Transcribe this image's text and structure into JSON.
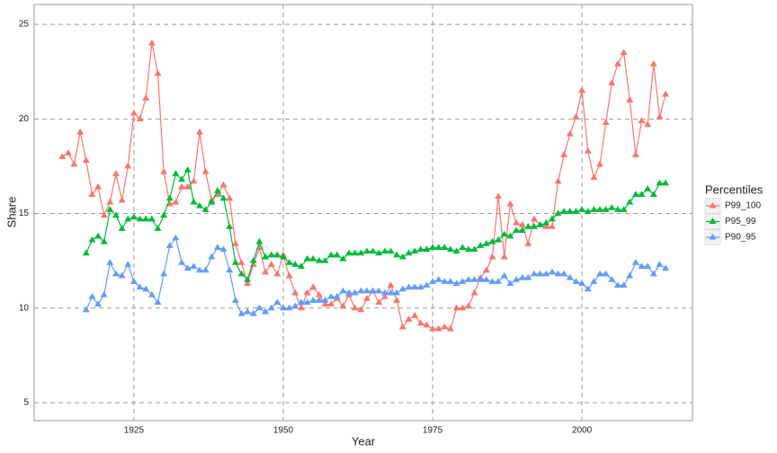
{
  "chart_data": {
    "type": "line",
    "x_label": "Year",
    "y_label": "Share",
    "legend_title": "Percentiles",
    "legend_position": "right",
    "grid": true,
    "markers": "triangle",
    "x": [
      1913,
      1914,
      1915,
      1916,
      1917,
      1918,
      1919,
      1920,
      1921,
      1922,
      1923,
      1924,
      1925,
      1926,
      1927,
      1928,
      1929,
      1930,
      1931,
      1932,
      1933,
      1934,
      1935,
      1936,
      1937,
      1938,
      1939,
      1940,
      1941,
      1942,
      1943,
      1944,
      1945,
      1946,
      1947,
      1948,
      1949,
      1950,
      1951,
      1952,
      1953,
      1954,
      1955,
      1956,
      1957,
      1958,
      1959,
      1960,
      1961,
      1962,
      1963,
      1964,
      1965,
      1966,
      1967,
      1968,
      1969,
      1970,
      1971,
      1972,
      1973,
      1974,
      1975,
      1976,
      1977,
      1978,
      1979,
      1980,
      1981,
      1982,
      1983,
      1984,
      1985,
      1986,
      1987,
      1988,
      1989,
      1990,
      1991,
      1992,
      1993,
      1994,
      1995,
      1996,
      1997,
      1998,
      1999,
      2000,
      2001,
      2002,
      2003,
      2004,
      2005,
      2006,
      2007,
      2008,
      2009,
      2010,
      2011,
      2012,
      2013,
      2014
    ],
    "series": [
      {
        "name": "P99_100",
        "color": "#f8766d",
        "values": [
          18.0,
          18.2,
          17.6,
          19.3,
          17.8,
          16.0,
          16.4,
          14.9,
          15.6,
          17.1,
          15.7,
          17.5,
          20.3,
          20.0,
          21.1,
          24.0,
          22.4,
          17.2,
          15.5,
          15.6,
          16.4,
          16.4,
          16.7,
          19.3,
          17.2,
          15.7,
          16.0,
          16.5,
          15.8,
          13.4,
          12.4,
          11.3,
          12.3,
          13.2,
          11.9,
          12.3,
          11.8,
          12.8,
          11.7,
          10.8,
          10.0,
          10.8,
          11.1,
          10.7,
          10.2,
          10.2,
          10.5,
          10.1,
          10.7,
          10.0,
          9.9,
          10.5,
          10.9,
          10.3,
          10.6,
          11.2,
          10.4,
          9.0,
          9.4,
          9.6,
          9.2,
          9.1,
          8.9,
          8.9,
          9.0,
          8.9,
          10.0,
          10.0,
          10.1,
          10.8,
          11.6,
          12.0,
          12.7,
          15.9,
          12.7,
          15.5,
          14.5,
          14.4,
          13.4,
          14.7,
          14.4,
          14.3,
          14.3,
          16.7,
          18.1,
          19.2,
          20.1,
          21.5,
          18.3,
          16.9,
          17.6,
          19.8,
          21.9,
          22.9,
          23.5,
          21.0,
          18.1,
          19.9,
          19.7,
          22.9,
          20.1,
          21.3
        ]
      },
      {
        "name": "P95_99",
        "color": "#00ba38",
        "values": [
          null,
          null,
          null,
          null,
          12.9,
          13.6,
          13.8,
          13.5,
          15.2,
          14.9,
          14.2,
          14.7,
          14.8,
          14.7,
          14.7,
          14.7,
          14.2,
          14.9,
          15.8,
          17.1,
          16.8,
          17.3,
          15.6,
          15.4,
          15.2,
          15.6,
          16.2,
          15.8,
          14.3,
          12.4,
          11.8,
          11.5,
          12.5,
          13.5,
          12.7,
          12.8,
          12.8,
          12.7,
          12.4,
          12.3,
          12.2,
          12.6,
          12.6,
          12.5,
          12.5,
          12.8,
          12.8,
          12.6,
          12.9,
          12.9,
          12.9,
          13.0,
          13.0,
          12.9,
          13.0,
          13.0,
          12.8,
          12.7,
          12.9,
          13.0,
          13.1,
          13.1,
          13.2,
          13.2,
          13.2,
          13.1,
          13.0,
          13.2,
          13.1,
          13.1,
          13.3,
          13.4,
          13.5,
          13.6,
          13.9,
          13.8,
          14.1,
          14.1,
          14.3,
          14.3,
          14.4,
          14.5,
          14.7,
          15.0,
          15.1,
          15.1,
          15.1,
          15.2,
          15.1,
          15.2,
          15.2,
          15.2,
          15.3,
          15.2,
          15.2,
          15.6,
          16.0,
          16.0,
          16.3,
          16.0,
          16.6,
          16.6
        ]
      },
      {
        "name": "P90_95",
        "color": "#619cff",
        "values": [
          null,
          null,
          null,
          null,
          9.9,
          10.6,
          10.2,
          10.7,
          12.4,
          11.8,
          11.7,
          12.3,
          11.4,
          11.1,
          11.0,
          10.7,
          10.3,
          11.8,
          13.3,
          13.7,
          12.4,
          12.1,
          12.2,
          12.0,
          12.0,
          12.7,
          13.2,
          13.1,
          12.0,
          10.4,
          9.7,
          9.8,
          9.7,
          10.0,
          9.8,
          10.0,
          10.3,
          10.0,
          10.0,
          10.1,
          10.3,
          10.3,
          10.4,
          10.4,
          10.4,
          10.6,
          10.6,
          10.9,
          10.8,
          10.8,
          10.9,
          10.9,
          10.9,
          10.9,
          10.8,
          10.8,
          10.8,
          11.0,
          11.1,
          11.1,
          11.1,
          11.2,
          11.4,
          11.5,
          11.4,
          11.4,
          11.3,
          11.4,
          11.5,
          11.5,
          11.5,
          11.5,
          11.4,
          11.4,
          11.7,
          11.3,
          11.5,
          11.6,
          11.6,
          11.8,
          11.8,
          11.8,
          11.9,
          11.8,
          11.8,
          11.6,
          11.4,
          11.3,
          11.0,
          11.4,
          11.8,
          11.8,
          11.5,
          11.2,
          11.2,
          11.7,
          12.4,
          12.2,
          12.2,
          11.8,
          12.3,
          12.1
        ]
      }
    ],
    "xlim": [
      1908.3,
      2018.5
    ],
    "xticks": [
      1925,
      1950,
      1975,
      2000
    ],
    "ylim": [
      4.05,
      26.05
    ],
    "yticks": [
      5,
      10,
      15,
      20,
      25
    ]
  }
}
